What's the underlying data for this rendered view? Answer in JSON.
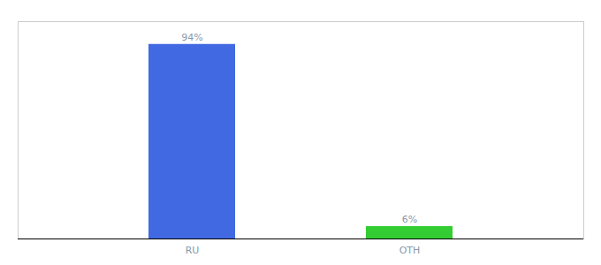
{
  "chart_data": {
    "type": "bar",
    "categories": [
      "RU",
      "OTH"
    ],
    "values": [
      94,
      6
    ],
    "value_labels": [
      "94%",
      "6%"
    ],
    "colors": [
      "#4169E1",
      "#33CC33"
    ],
    "ylim": [
      0,
      105
    ],
    "data_labels": true,
    "tick_labels": "x"
  }
}
